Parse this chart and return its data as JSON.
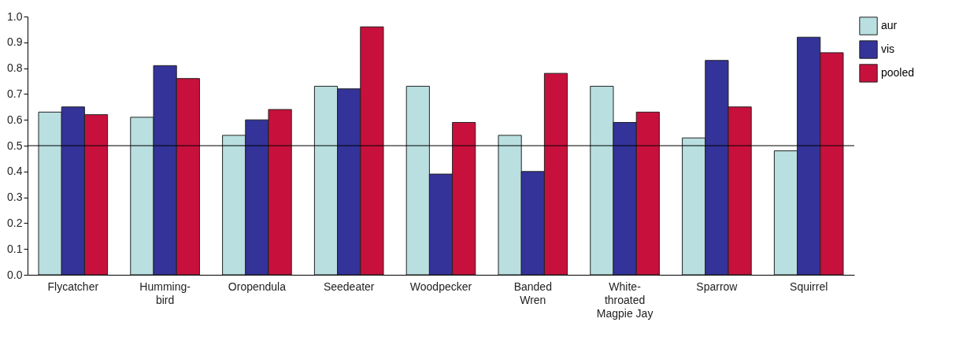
{
  "chart_data": {
    "type": "bar",
    "categories": [
      "Flycatcher",
      "Humming-\nbird",
      "Oropendula",
      "Seedeater",
      "Woodpecker",
      "Banded\nWren",
      "White-\nthroated\nMagpie Jay",
      "Sparrow",
      "Squirrel"
    ],
    "series": [
      {
        "name": "aur",
        "color": "#b9dfe0",
        "values": [
          0.63,
          0.61,
          0.54,
          0.73,
          0.73,
          0.54,
          0.73,
          0.53,
          0.48
        ]
      },
      {
        "name": "vis",
        "color": "#333399",
        "values": [
          0.65,
          0.81,
          0.6,
          0.72,
          0.39,
          0.4,
          0.59,
          0.83,
          0.92
        ]
      },
      {
        "name": "pooled",
        "color": "#c8103c",
        "values": [
          0.62,
          0.76,
          0.64,
          0.96,
          0.59,
          0.78,
          0.63,
          0.65,
          0.86
        ]
      }
    ],
    "ylim": [
      0,
      1
    ],
    "yticks": [
      {
        "value": 0,
        "label": "0.0"
      },
      {
        "value": 0.1,
        "label": "0.1"
      },
      {
        "value": 0.2,
        "label": "0.2"
      },
      {
        "value": 0.3,
        "label": "0.3"
      },
      {
        "value": 0.4,
        "label": "0.4"
      },
      {
        "value": 0.5,
        "label": "0.5"
      },
      {
        "value": 0.6,
        "label": "0.6"
      },
      {
        "value": 0.7,
        "label": "0.7"
      },
      {
        "value": 0.8,
        "label": "0.8"
      },
      {
        "value": 0.9,
        "label": "0.9"
      },
      {
        "value": 1,
        "label": "1.0"
      }
    ],
    "ref_lines": [
      {
        "axis": "y",
        "value": 0.5,
        "color": "#000000"
      }
    ],
    "grid": false,
    "legend": "top right"
  }
}
